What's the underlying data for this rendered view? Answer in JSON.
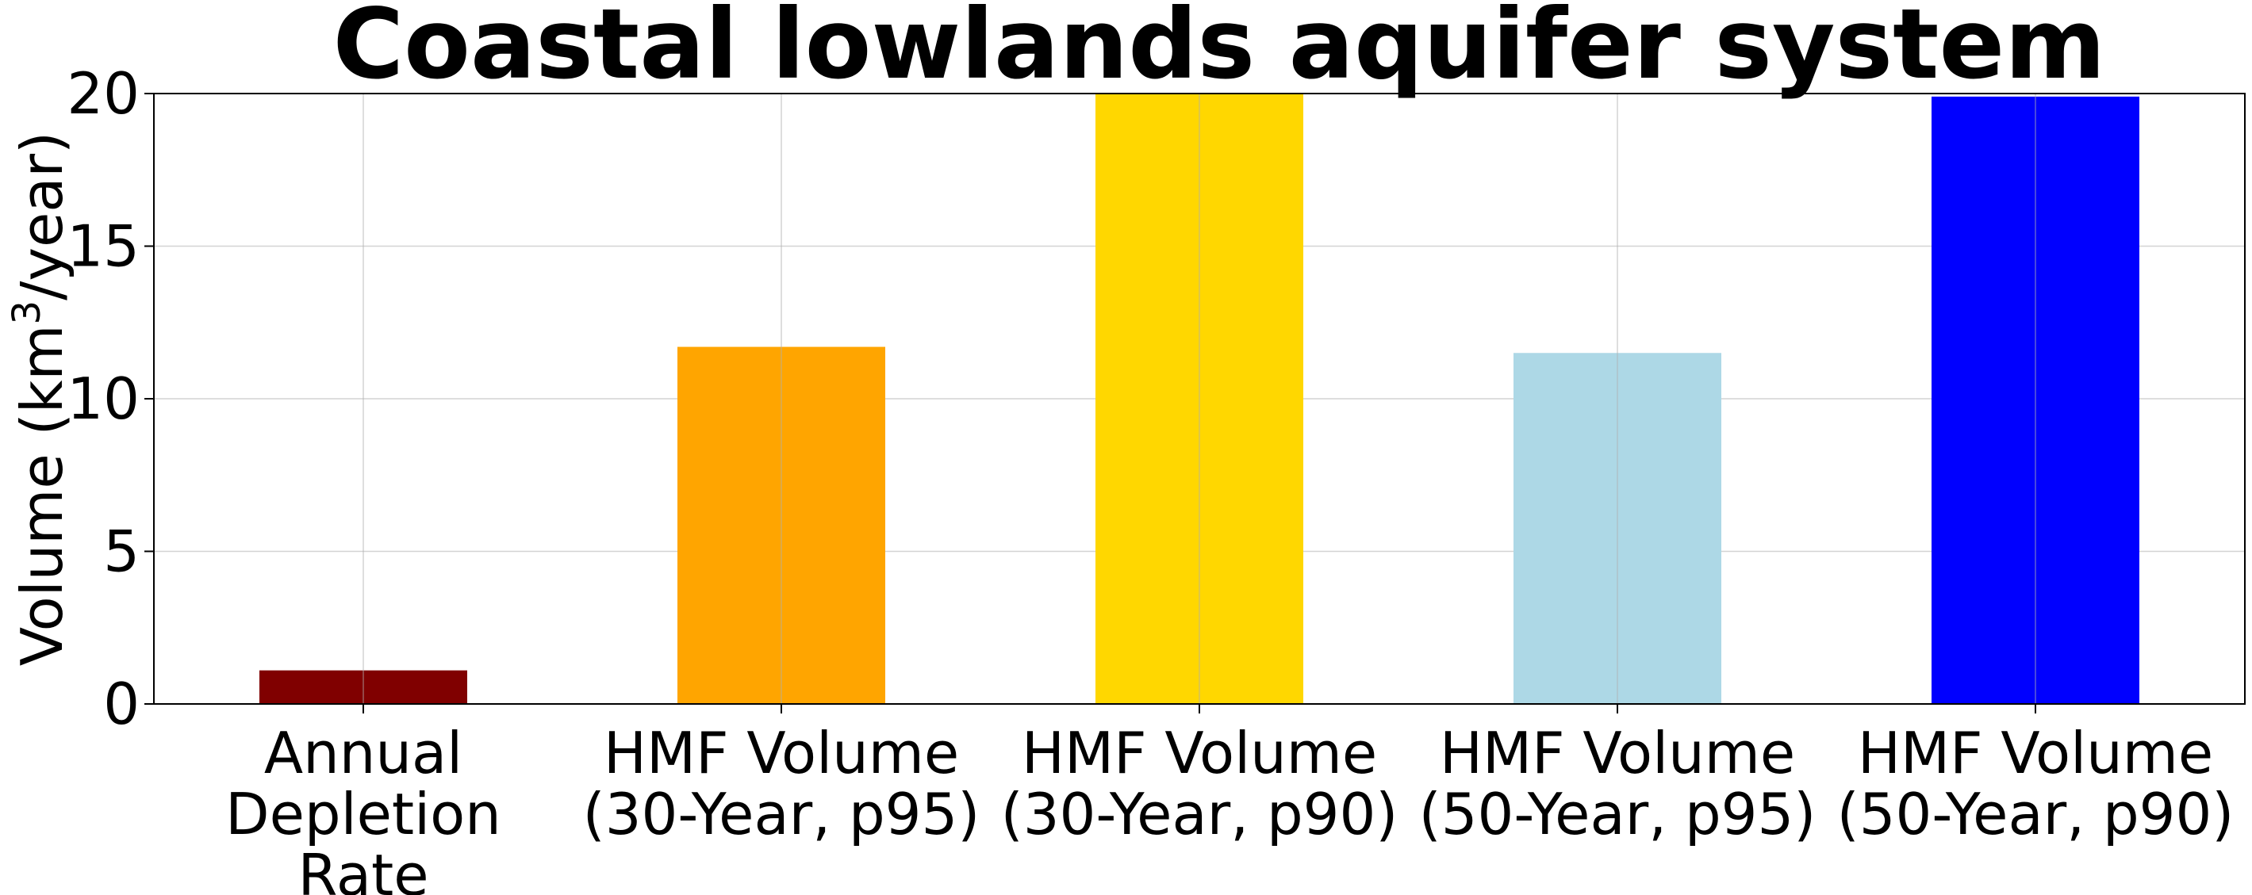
{
  "chart_data": {
    "type": "bar",
    "title": "Coastal lowlands aquifer system",
    "ylabel_prefix": "Volume (km",
    "ylabel_superscript": "3",
    "ylabel_suffix": "/year)",
    "xlabel": "",
    "ylim": [
      0,
      20
    ],
    "yticks": [
      0,
      5,
      10,
      15,
      20
    ],
    "grid": true,
    "categories": [
      [
        "Annual",
        "Depletion",
        "Rate"
      ],
      [
        "HMF Volume",
        "(30-Year, p95)"
      ],
      [
        "HMF Volume",
        "(30-Year, p90)"
      ],
      [
        "HMF Volume",
        "(50-Year, p95)"
      ],
      [
        "HMF Volume",
        "(50-Year, p90)"
      ]
    ],
    "values": [
      1.1,
      11.7,
      20.0,
      11.5,
      19.9
    ],
    "colors": [
      "#800000",
      "#FFA500",
      "#FFD700",
      "#ADD8E6",
      "#0000FF"
    ]
  }
}
